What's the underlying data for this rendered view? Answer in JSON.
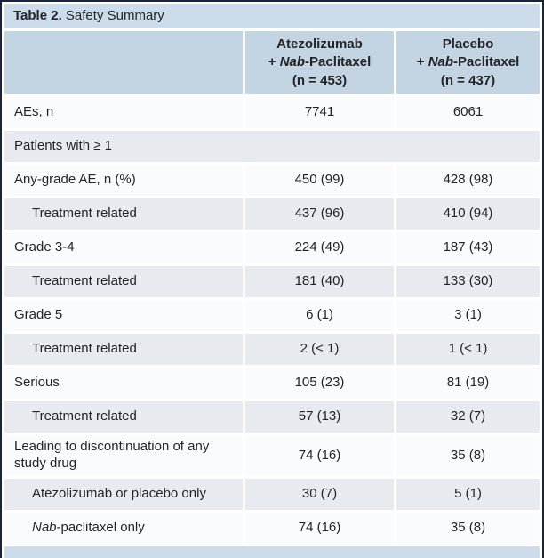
{
  "page": {
    "title_bold": "Table 2.",
    "title_rest": " Safety Summary"
  },
  "colors": {
    "frame": "#17243c",
    "title_bar_bg": "#ccdcea",
    "header_row_bg": "#c3d4e2",
    "shaded_row_bg": "#e7eaee",
    "white_row_bg": "#fafbfd",
    "bottom_strip_bg": "#ccdcea",
    "text": "#222428"
  },
  "table": {
    "columns": [
      {
        "line1": "Atezolizumab",
        "line2_pre": "+ ",
        "line2_italic": "Nab",
        "line2_post": "-Paclitaxel",
        "line3": "(n = 453)"
      },
      {
        "line1": "Placebo",
        "line2_pre": "+ ",
        "line2_italic": "Nab",
        "line2_post": "-Paclitaxel",
        "line3": "(n = 437)"
      }
    ],
    "rows": [
      {
        "type": "data",
        "indent": false,
        "tall": false,
        "shade": "white",
        "label": [
          {
            "t": "AEs, n"
          }
        ],
        "v1": "7741",
        "v2": "6061"
      },
      {
        "type": "section",
        "indent": false,
        "tall": false,
        "shade": "gray",
        "label": [
          {
            "t": "Patients with ≥ 1"
          }
        ],
        "v1": "",
        "v2": ""
      },
      {
        "type": "data",
        "indent": false,
        "tall": false,
        "shade": "white",
        "label": [
          {
            "t": "Any-grade AE, n (%)"
          }
        ],
        "v1": "450 (99)",
        "v2": "428 (98)"
      },
      {
        "type": "data",
        "indent": true,
        "tall": false,
        "shade": "gray",
        "label": [
          {
            "t": "Treatment related"
          }
        ],
        "v1": "437 (96)",
        "v2": "410 (94)"
      },
      {
        "type": "data",
        "indent": false,
        "tall": false,
        "shade": "white",
        "label": [
          {
            "t": "Grade 3-4"
          }
        ],
        "v1": "224 (49)",
        "v2": "187 (43)"
      },
      {
        "type": "data",
        "indent": true,
        "tall": false,
        "shade": "gray",
        "label": [
          {
            "t": "Treatment related"
          }
        ],
        "v1": "181 (40)",
        "v2": "133 (30)"
      },
      {
        "type": "data",
        "indent": false,
        "tall": false,
        "shade": "white",
        "label": [
          {
            "t": "Grade 5"
          }
        ],
        "v1": "6 (1)",
        "v2": "3 (1)"
      },
      {
        "type": "data",
        "indent": true,
        "tall": false,
        "shade": "gray",
        "label": [
          {
            "t": "Treatment related"
          }
        ],
        "v1": "2 (< 1)",
        "v2": "1 (< 1)"
      },
      {
        "type": "data",
        "indent": false,
        "tall": false,
        "shade": "white",
        "label": [
          {
            "t": "Serious"
          }
        ],
        "v1": "105 (23)",
        "v2": "81 (19)"
      },
      {
        "type": "data",
        "indent": true,
        "tall": false,
        "shade": "gray",
        "label": [
          {
            "t": "Treatment related"
          }
        ],
        "v1": "57 (13)",
        "v2": "32 (7)"
      },
      {
        "type": "data",
        "indent": false,
        "tall": true,
        "shade": "white",
        "label": [
          {
            "t": "Leading to discontinuation of any study drug"
          }
        ],
        "v1": "74 (16)",
        "v2": "35 (8)"
      },
      {
        "type": "data",
        "indent": true,
        "tall": false,
        "shade": "gray",
        "label": [
          {
            "t": "Atezolizumab or placebo only"
          }
        ],
        "v1": "30 (7)",
        "v2": "5 (1)"
      },
      {
        "type": "data",
        "indent": true,
        "tall": false,
        "shade": "white",
        "label": [
          {
            "t": "Nab",
            "i": true
          },
          {
            "t": "-paclitaxel only"
          }
        ],
        "v1": "74 (16)",
        "v2": "35 (8)"
      }
    ]
  }
}
